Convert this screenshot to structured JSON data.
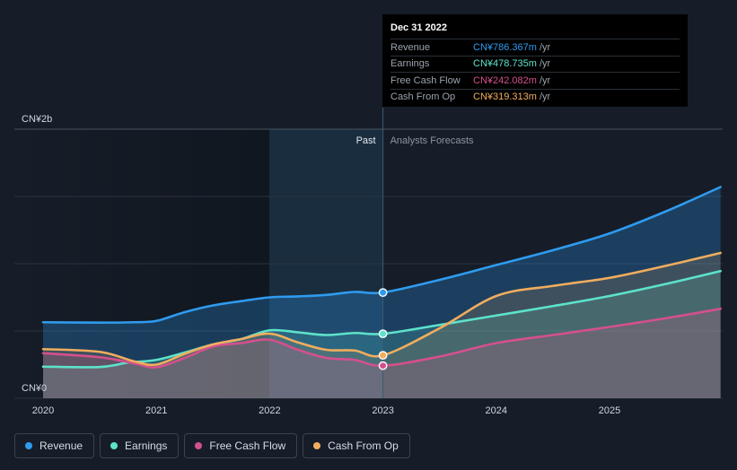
{
  "tooltip": {
    "date": "Dec 31 2022",
    "rows": [
      {
        "label": "Revenue",
        "value": "CN¥786.367m",
        "unit": "/yr",
        "color": "#2f9bef"
      },
      {
        "label": "Earnings",
        "value": "CN¥478.735m",
        "unit": "/yr",
        "color": "#5de2cb"
      },
      {
        "label": "Free Cash Flow",
        "value": "CN¥242.082m",
        "unit": "/yr",
        "color": "#d4508d"
      },
      {
        "label": "Cash From Op",
        "value": "CN¥319.313m",
        "unit": "/yr",
        "color": "#f0ad5e"
      }
    ]
  },
  "legend": [
    {
      "label": "Revenue",
      "color": "#2f9bef"
    },
    {
      "label": "Earnings",
      "color": "#5de2cb"
    },
    {
      "label": "Free Cash Flow",
      "color": "#d4508d"
    },
    {
      "label": "Cash From Op",
      "color": "#f0ad5e"
    }
  ],
  "chart_data": {
    "type": "line",
    "unit": "CN¥ m / yr",
    "ylim": [
      0,
      2000
    ],
    "y_tick_labels": [
      "CN¥0",
      "CN¥2b"
    ],
    "x_ticks": [
      2020,
      2021,
      2022,
      2023,
      2024,
      2025
    ],
    "past_label": "Past",
    "forecast_label": "Analysts Forecasts",
    "divider_x": 2023.0,
    "series": [
      {
        "name": "Revenue",
        "color": "#2f9bef",
        "points": [
          [
            2020.0,
            565
          ],
          [
            2020.5,
            562
          ],
          [
            2020.8,
            565
          ],
          [
            2021.0,
            575
          ],
          [
            2021.25,
            640
          ],
          [
            2021.5,
            690
          ],
          [
            2021.75,
            722
          ],
          [
            2022.0,
            750
          ],
          [
            2022.25,
            757
          ],
          [
            2022.5,
            768
          ],
          [
            2022.75,
            790
          ],
          [
            2023.0,
            786
          ],
          [
            2023.5,
            880
          ],
          [
            2024.0,
            990
          ],
          [
            2024.5,
            1100
          ],
          [
            2025.0,
            1225
          ],
          [
            2025.5,
            1390
          ],
          [
            2025.98,
            1570
          ]
        ]
      },
      {
        "name": "Earnings",
        "color": "#5de2cb",
        "points": [
          [
            2020.0,
            235
          ],
          [
            2020.5,
            232
          ],
          [
            2020.75,
            265
          ],
          [
            2021.0,
            285
          ],
          [
            2021.25,
            340
          ],
          [
            2021.5,
            400
          ],
          [
            2021.75,
            440
          ],
          [
            2022.0,
            505
          ],
          [
            2022.25,
            490
          ],
          [
            2022.5,
            470
          ],
          [
            2022.75,
            485
          ],
          [
            2023.0,
            479
          ],
          [
            2023.5,
            545
          ],
          [
            2024.0,
            615
          ],
          [
            2024.5,
            685
          ],
          [
            2025.0,
            760
          ],
          [
            2025.5,
            850
          ],
          [
            2025.98,
            945
          ]
        ]
      },
      {
        "name": "Free Cash Flow",
        "color": "#d4508d",
        "points": [
          [
            2020.0,
            335
          ],
          [
            2020.5,
            305
          ],
          [
            2020.8,
            260
          ],
          [
            2021.0,
            230
          ],
          [
            2021.25,
            300
          ],
          [
            2021.5,
            385
          ],
          [
            2021.75,
            410
          ],
          [
            2022.0,
            435
          ],
          [
            2022.25,
            360
          ],
          [
            2022.5,
            300
          ],
          [
            2022.75,
            285
          ],
          [
            2023.0,
            242
          ],
          [
            2023.5,
            310
          ],
          [
            2024.0,
            410
          ],
          [
            2024.5,
            470
          ],
          [
            2025.0,
            530
          ],
          [
            2025.5,
            595
          ],
          [
            2025.98,
            665
          ]
        ]
      },
      {
        "name": "Cash From Op",
        "color": "#f0ad5e",
        "points": [
          [
            2020.0,
            365
          ],
          [
            2020.5,
            345
          ],
          [
            2020.8,
            275
          ],
          [
            2021.0,
            250
          ],
          [
            2021.25,
            330
          ],
          [
            2021.5,
            400
          ],
          [
            2021.75,
            440
          ],
          [
            2022.0,
            480
          ],
          [
            2022.25,
            415
          ],
          [
            2022.5,
            360
          ],
          [
            2022.75,
            355
          ],
          [
            2023.0,
            319
          ],
          [
            2023.5,
            520
          ],
          [
            2024.0,
            760
          ],
          [
            2024.5,
            835
          ],
          [
            2025.0,
            895
          ],
          [
            2025.5,
            985
          ],
          [
            2025.98,
            1080
          ]
        ]
      }
    ]
  }
}
